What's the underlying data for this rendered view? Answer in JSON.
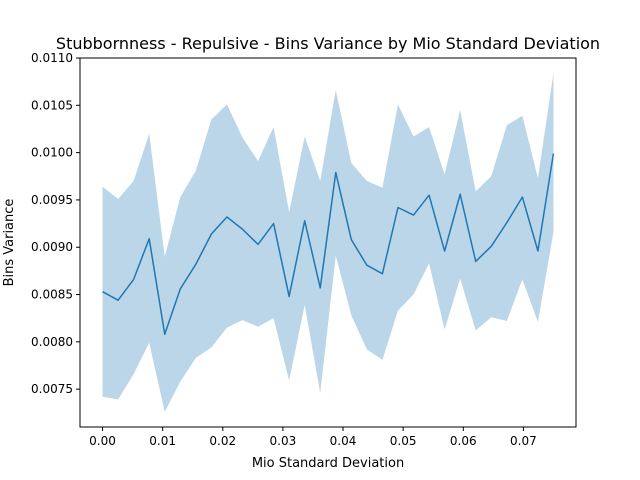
{
  "chart_data": {
    "type": "line",
    "title": "Stubbornness - Repulsive - Bins Variance by Mio Standard Deviation",
    "xlabel": "Mio Standard Deviation",
    "ylabel": "Bins Variance",
    "xlim": [
      -0.00375,
      0.07875
    ],
    "ylim": [
      0.0071,
      0.011
    ],
    "xticks": [
      0.0,
      0.01,
      0.02,
      0.03,
      0.04,
      0.05,
      0.06,
      0.07
    ],
    "xtick_labels": [
      "0.00",
      "0.01",
      "0.02",
      "0.03",
      "0.04",
      "0.05",
      "0.06",
      "0.07"
    ],
    "yticks": [
      0.0075,
      0.008,
      0.0085,
      0.009,
      0.0095,
      0.01,
      0.0105,
      0.011
    ],
    "ytick_labels": [
      "0.0075",
      "0.0080",
      "0.0085",
      "0.0090",
      "0.0095",
      "0.0100",
      "0.0105",
      "0.0110"
    ],
    "grid": false,
    "line_color": "#1f77b4",
    "band_color": "#1f77b4",
    "band_opacity": 0.3,
    "x": [
      0.0,
      0.0025862,
      0.0051724,
      0.0077586,
      0.0103448,
      0.012931,
      0.0155172,
      0.0181034,
      0.0206897,
      0.0232759,
      0.0258621,
      0.0284483,
      0.0310345,
      0.0336207,
      0.0362069,
      0.0387931,
      0.0413793,
      0.0439655,
      0.0465517,
      0.0491379,
      0.0517241,
      0.0543103,
      0.0568966,
      0.0594828,
      0.062069,
      0.0646552,
      0.0672414,
      0.0698276,
      0.0724138,
      0.075
    ],
    "series": [
      {
        "values": [
          0.00853,
          0.00844,
          0.00866,
          0.00909,
          0.00808,
          0.00856,
          0.00882,
          0.00914,
          0.00932,
          0.00919,
          0.00903,
          0.00925,
          0.00848,
          0.00928,
          0.00857,
          0.00979,
          0.00908,
          0.00881,
          0.00872,
          0.00942,
          0.00934,
          0.00955,
          0.00896,
          0.00956,
          0.00885,
          0.00901,
          0.00926,
          0.00953,
          0.00896,
          0.00999
        ],
        "lower": [
          0.00742,
          0.00739,
          0.00766,
          0.00799,
          0.00726,
          0.00758,
          0.00783,
          0.00794,
          0.00815,
          0.00823,
          0.00816,
          0.00825,
          0.00759,
          0.00839,
          0.00746,
          0.00891,
          0.00828,
          0.00792,
          0.00781,
          0.00833,
          0.0085,
          0.00883,
          0.00813,
          0.00867,
          0.00812,
          0.00826,
          0.00822,
          0.00866,
          0.00821,
          0.00916
        ],
        "upper": [
          0.00964,
          0.00951,
          0.0097,
          0.0102,
          0.0089,
          0.00953,
          0.00981,
          0.01035,
          0.01051,
          0.01016,
          0.00991,
          0.01027,
          0.00937,
          0.01017,
          0.0097,
          0.01066,
          0.00989,
          0.0097,
          0.00963,
          0.01051,
          0.01017,
          0.01027,
          0.00977,
          0.01045,
          0.00959,
          0.00975,
          0.01029,
          0.01039,
          0.00973,
          0.01084
        ]
      }
    ]
  }
}
